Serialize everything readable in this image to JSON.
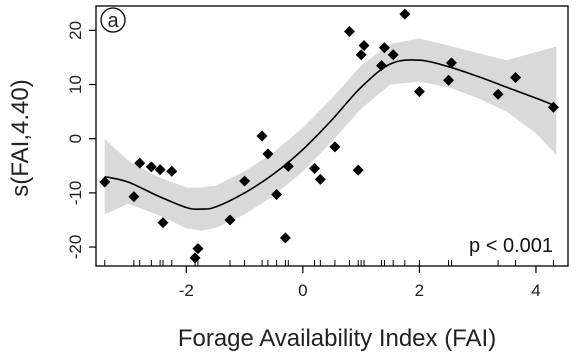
{
  "chart_data": {
    "type": "scatter",
    "panel_label": "a",
    "xlabel": "Forage Availability Index (FAI)",
    "ylabel": "s(FAI,4.40)",
    "annotation": "p < 0.001",
    "xlim": [
      -3.55,
      4.55
    ],
    "ylim": [
      -23.5,
      24.5
    ],
    "x_ticks": [
      -2,
      0,
      2,
      4
    ],
    "y_ticks": [
      -20,
      -10,
      0,
      10,
      20
    ],
    "grid": false,
    "colors": {
      "points": "#000000",
      "curve": "#000000",
      "band": "#d9d9d9"
    },
    "points": [
      {
        "x": -3.4,
        "y": -8
      },
      {
        "x": -2.9,
        "y": -10.7
      },
      {
        "x": -2.8,
        "y": -4.5
      },
      {
        "x": -2.6,
        "y": -5.2
      },
      {
        "x": -2.45,
        "y": -5.7
      },
      {
        "x": -2.4,
        "y": -15.5
      },
      {
        "x": -2.25,
        "y": -6
      },
      {
        "x": -1.85,
        "y": -22
      },
      {
        "x": -1.8,
        "y": -20.3
      },
      {
        "x": -1.25,
        "y": -15
      },
      {
        "x": -1.0,
        "y": -7.8
      },
      {
        "x": -0.7,
        "y": 0.5
      },
      {
        "x": -0.6,
        "y": -2.8
      },
      {
        "x": -0.45,
        "y": -10.3
      },
      {
        "x": -0.3,
        "y": -18.3
      },
      {
        "x": -0.25,
        "y": -5.1
      },
      {
        "x": 0.2,
        "y": -5.5
      },
      {
        "x": 0.3,
        "y": -7.5
      },
      {
        "x": 0.55,
        "y": -1.5
      },
      {
        "x": 0.8,
        "y": 19.8
      },
      {
        "x": 0.95,
        "y": -5.8
      },
      {
        "x": 1.0,
        "y": 15.5
      },
      {
        "x": 1.05,
        "y": 17.2
      },
      {
        "x": 1.35,
        "y": 13.5
      },
      {
        "x": 1.4,
        "y": 16.8
      },
      {
        "x": 1.55,
        "y": 15.5
      },
      {
        "x": 1.75,
        "y": 23
      },
      {
        "x": 2.0,
        "y": 8.7
      },
      {
        "x": 2.5,
        "y": 10.8
      },
      {
        "x": 2.55,
        "y": 14
      },
      {
        "x": 3.35,
        "y": 8.2
      },
      {
        "x": 3.65,
        "y": 11.3
      },
      {
        "x": 4.3,
        "y": 5.8
      }
    ],
    "smooth_fit": {
      "x": [
        -3.4,
        -3.0,
        -2.5,
        -2.0,
        -1.75,
        -1.5,
        -1.0,
        -0.5,
        0.0,
        0.5,
        1.0,
        1.5,
        2.0,
        2.5,
        3.0,
        3.5,
        4.0,
        4.35
      ],
      "y": [
        -7,
        -8,
        -10.5,
        -12.7,
        -13,
        -12.6,
        -10,
        -6.5,
        -2,
        3.5,
        9.5,
        13.8,
        14.5,
        13.3,
        11.5,
        9.5,
        7.5,
        6
      ]
    },
    "confidence_band": {
      "x": [
        -3.4,
        -3.0,
        -2.5,
        -2.0,
        -1.75,
        -1.5,
        -1.0,
        -0.5,
        0.0,
        0.5,
        1.0,
        1.5,
        2.0,
        2.5,
        3.0,
        3.5,
        4.0,
        4.35
      ],
      "lower": [
        -14,
        -12,
        -14,
        -16.5,
        -17,
        -16.5,
        -14,
        -10.5,
        -6,
        -0.5,
        5.5,
        10,
        10.5,
        9.5,
        7.5,
        5,
        1,
        -3
      ],
      "upper": [
        0,
        -4,
        -7,
        -9,
        -9,
        -8.7,
        -6,
        -2.5,
        2,
        7.5,
        13.5,
        17.5,
        18.5,
        17.2,
        15.8,
        14.5,
        16,
        17
      ]
    },
    "rug_x": [
      -3.4,
      -2.9,
      -2.8,
      -2.6,
      -2.45,
      -2.4,
      -2.25,
      -1.85,
      -1.8,
      -1.25,
      -1.0,
      -0.7,
      -0.6,
      -0.45,
      -0.3,
      -0.25,
      0.2,
      0.3,
      0.55,
      0.8,
      0.95,
      1.0,
      1.05,
      1.35,
      1.4,
      1.55,
      1.75,
      2.0,
      2.5,
      2.55,
      3.35,
      3.65,
      4.3
    ]
  }
}
